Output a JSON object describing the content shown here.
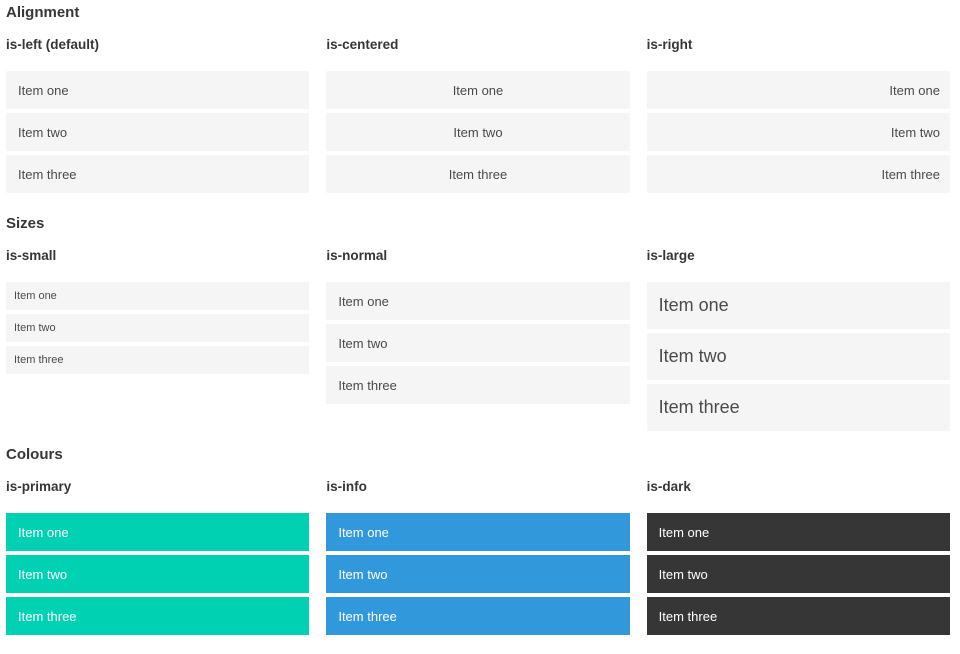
{
  "colors": {
    "page_bg": "#ffffff",
    "heading_text": "#363636",
    "item_bg": "#f5f5f5",
    "item_text": "#4a4a4a",
    "item_text_inverse": "#ffffff",
    "primary": "#00d1b2",
    "info": "#3298dc",
    "dark": "#363636"
  },
  "sections": [
    {
      "title": "Alignment",
      "columns": [
        {
          "label": "is-left (default)",
          "items": [
            "Item one",
            "Item two",
            "Item three"
          ]
        },
        {
          "label": "is-centered",
          "items": [
            "Item one",
            "Item two",
            "Item three"
          ]
        },
        {
          "label": "is-right",
          "items": [
            "Item one",
            "Item two",
            "Item three"
          ]
        }
      ]
    },
    {
      "title": "Sizes",
      "columns": [
        {
          "label": "is-small",
          "items": [
            "Item one",
            "Item two",
            "Item three"
          ]
        },
        {
          "label": "is-normal",
          "items": [
            "Item one",
            "Item two",
            "Item three"
          ]
        },
        {
          "label": "is-large",
          "items": [
            "Item one",
            "Item two",
            "Item three"
          ]
        }
      ]
    },
    {
      "title": "Colours",
      "columns": [
        {
          "label": "is-primary",
          "items": [
            "Item one",
            "Item two",
            "Item three"
          ]
        },
        {
          "label": "is-info",
          "items": [
            "Item one",
            "Item two",
            "Item three"
          ]
        },
        {
          "label": "is-dark",
          "items": [
            "Item one",
            "Item two",
            "Item three"
          ]
        }
      ]
    }
  ]
}
